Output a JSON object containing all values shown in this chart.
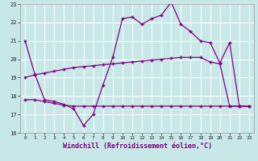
{
  "title": "",
  "xlabel": "Windchill (Refroidissement éolien,°C)",
  "ylabel": "",
  "bg_color": "#c8e8e8",
  "grid_color": "#ffffff",
  "line_color": "#800080",
  "xlim": [
    -0.5,
    23.5
  ],
  "ylim": [
    16,
    23
  ],
  "xticks": [
    0,
    1,
    2,
    3,
    4,
    5,
    6,
    7,
    8,
    9,
    10,
    11,
    12,
    13,
    14,
    15,
    16,
    17,
    18,
    19,
    20,
    21,
    22,
    23
  ],
  "yticks": [
    16,
    17,
    18,
    19,
    20,
    21,
    22,
    23
  ],
  "line1_x": [
    0,
    1,
    2,
    3,
    4,
    5,
    6,
    7,
    8,
    9,
    10,
    11,
    12,
    13,
    14,
    15,
    16,
    17,
    18,
    19,
    20,
    21,
    22,
    23
  ],
  "line1_y": [
    21.0,
    19.2,
    17.8,
    17.7,
    17.55,
    17.3,
    16.4,
    17.0,
    18.6,
    20.1,
    22.2,
    22.3,
    21.9,
    22.2,
    22.4,
    23.1,
    21.9,
    21.5,
    21.0,
    20.9,
    19.8,
    20.9,
    17.45,
    17.45
  ],
  "line2_x": [
    0,
    1,
    2,
    3,
    4,
    5,
    6,
    7,
    8,
    9,
    10,
    11,
    12,
    13,
    14,
    15,
    16,
    17,
    18,
    19,
    20,
    21,
    22,
    23
  ],
  "line2_y": [
    19.0,
    19.15,
    19.25,
    19.35,
    19.45,
    19.55,
    19.6,
    19.65,
    19.7,
    19.75,
    19.8,
    19.85,
    19.9,
    19.95,
    20.0,
    20.05,
    20.1,
    20.1,
    20.1,
    19.85,
    19.75,
    17.45,
    17.45,
    17.45
  ],
  "line3_x": [
    0,
    1,
    2,
    3,
    4,
    5,
    6,
    7,
    8,
    9,
    10,
    11,
    12,
    13,
    14,
    15,
    16,
    17,
    18,
    19,
    20,
    21,
    22,
    23
  ],
  "line3_y": [
    17.8,
    17.8,
    17.7,
    17.6,
    17.5,
    17.45,
    17.45,
    17.45,
    17.45,
    17.45,
    17.45,
    17.45,
    17.45,
    17.45,
    17.45,
    17.45,
    17.45,
    17.45,
    17.45,
    17.45,
    17.45,
    17.45,
    17.45,
    17.45
  ]
}
